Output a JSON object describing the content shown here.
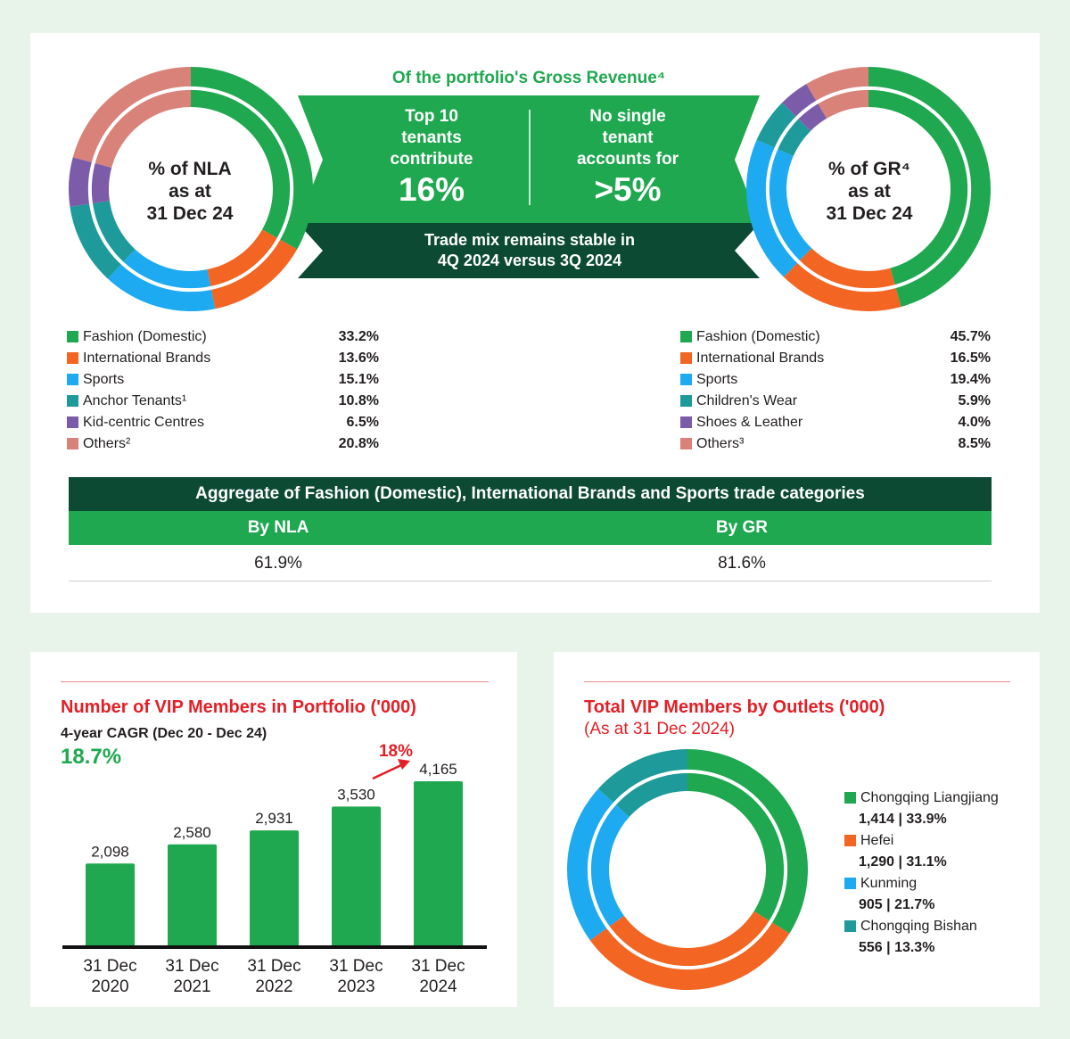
{
  "top": {
    "banner_title": "Of the portfolio's Gross Revenue⁴",
    "top10": {
      "line1": "Top 10",
      "line2": "tenants",
      "line3": "contribute",
      "value": "16%"
    },
    "single": {
      "line1": "No single",
      "line2": "tenant",
      "line3": "accounts for",
      "value": ">5%"
    },
    "stable": {
      "line1": "Trade mix remains stable in",
      "line2": "4Q 2024 versus 3Q 2024"
    }
  },
  "nla_chart": {
    "label_line1": "% of NLA",
    "label_line2": "as at",
    "label_line3": "31 Dec 24"
  },
  "gr_chart": {
    "label_line1": "% of GR⁴",
    "label_line2": "as at",
    "label_line3": "31 Dec 24"
  },
  "aggregate": {
    "title": "Aggregate of Fashion (Domestic), International Brands and Sports trade categories",
    "col1_label": "By NLA",
    "col2_label": "By GR",
    "col1_value": "61.9%",
    "col2_value": "81.6%"
  },
  "vip": {
    "title": "Number of VIP Members in Portfolio ('000)",
    "cagr_label": "4-year CAGR (Dec 20 - Dec 24)",
    "cagr_value": "18.7%",
    "growth_label": "18%"
  },
  "outlets": {
    "title": "Total VIP Members by Outlets ('000)",
    "subtitle": "(As at 31 Dec 2024)"
  },
  "chart_data": [
    {
      "type": "pie",
      "id": "nla",
      "labels": [
        "Fashion (Domestic)",
        "International Brands",
        "Sports",
        "Anchor Tenants¹",
        "Kid-centric Centres",
        "Others²"
      ],
      "value_labels": [
        "33.2%",
        "13.6%",
        "15.1%",
        "10.8%",
        "6.5%",
        "20.8%"
      ],
      "values": [
        33.2,
        13.6,
        15.1,
        10.8,
        6.5,
        20.8
      ],
      "colors": [
        "#1fa84f",
        "#f26522",
        "#1eaaf1",
        "#1e9a9a",
        "#7c5ca9",
        "#d9827a"
      ]
    },
    {
      "type": "pie",
      "id": "gr",
      "labels": [
        "Fashion (Domestic)",
        "International Brands",
        "Sports",
        "Children's Wear",
        "Shoes & Leather",
        "Others³"
      ],
      "value_labels": [
        "45.7%",
        "16.5%",
        "19.4%",
        "5.9%",
        "4.0%",
        "8.5%"
      ],
      "values": [
        45.7,
        16.5,
        19.4,
        5.9,
        4.0,
        8.5
      ],
      "colors": [
        "#1fa84f",
        "#f26522",
        "#1eaaf1",
        "#1e9a9a",
        "#7c5ca9",
        "#d9827a"
      ]
    },
    {
      "type": "bar",
      "id": "vip_members",
      "categories": [
        [
          "31 Dec",
          "2020"
        ],
        [
          "31 Dec",
          "2021"
        ],
        [
          "31 Dec",
          "2022"
        ],
        [
          "31 Dec",
          "2023"
        ],
        [
          "31 Dec",
          "2024"
        ]
      ],
      "values": [
        2098,
        2580,
        2931,
        3530,
        4165
      ],
      "value_labels": [
        "2,098",
        "2,580",
        "2,931",
        "3,530",
        "4,165"
      ],
      "ylim": [
        0,
        4165
      ],
      "color": "#1fa84f"
    },
    {
      "type": "pie",
      "id": "vip_outlets",
      "labels": [
        "Chongqing Liangjiang",
        "Hefei",
        "Kunming",
        "Chongqing Bishan"
      ],
      "value_labels": [
        "1,414 | 33.9%",
        "1,290 | 31.1%",
        "905 | 21.7%",
        "556 | 13.3%"
      ],
      "values": [
        33.9,
        31.1,
        21.7,
        13.3
      ],
      "colors": [
        "#1fa84f",
        "#f26522",
        "#1eaaf1",
        "#1e9a9a"
      ]
    }
  ]
}
